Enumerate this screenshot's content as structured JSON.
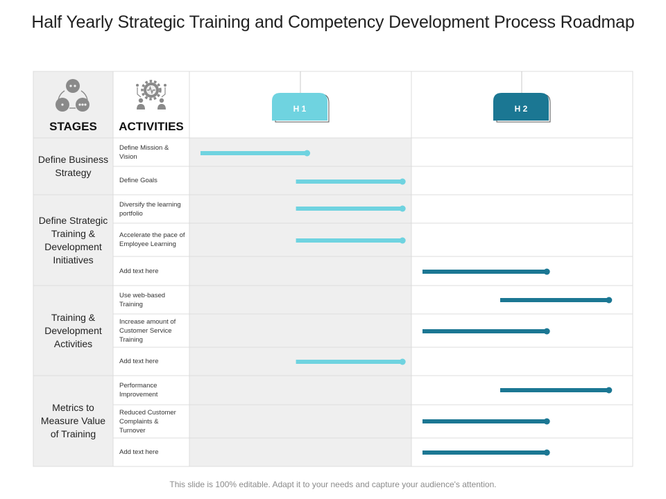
{
  "title": "Half Yearly Strategic Training and Competency Development Process Roadmap",
  "footer": "This slide is 100% editable. Adapt it to your needs and capture your audience's attention.",
  "headers": {
    "stages": "STAGES",
    "activities": "ACTIVITIES"
  },
  "halves": [
    {
      "label": "H 1",
      "color": "#6fd3e0"
    },
    {
      "label": "H 2",
      "color": "#1b7793"
    }
  ],
  "icons": {
    "stages": "team-cycle-icon",
    "activities": "gear-people-icon"
  },
  "colors": {
    "light_bar": "#6fd3e0",
    "dark_bar": "#1b7793",
    "shade": "#efefef",
    "grid": "#dcdcdc"
  },
  "stages": [
    "Define Business Strategy",
    "Define Strategic Training & Development Initiatives",
    "Training & Development Activities",
    "Metrics to Measure Value of Training"
  ],
  "activities": [
    "Define Mission & Vision",
    "Define Goals",
    "Diversify the learning portfolio",
    "Accelerate the pace of Employee Learning",
    "Add text here",
    "Use web-based Training",
    "Increase amount of Customer Service Training",
    "Add text here",
    "Performance Improvement",
    "Reduced Customer Complaints & Turnover",
    "Add text here"
  ],
  "chart_data": {
    "type": "gantt",
    "timeline": [
      "H 1",
      "H 2"
    ],
    "axis_units": "half-years (0 = start of H 1, 2 = end of H 2)",
    "tasks": [
      {
        "activity": "Define Mission & Vision",
        "start": 0.05,
        "end": 0.53,
        "half": "H 1"
      },
      {
        "activity": "Define Goals",
        "start": 0.48,
        "end": 0.96,
        "half": "H 1"
      },
      {
        "activity": "Diversify the learning portfolio",
        "start": 0.48,
        "end": 0.96,
        "half": "H 1"
      },
      {
        "activity": "Accelerate the pace of Employee Learning",
        "start": 0.48,
        "end": 0.96,
        "half": "H 1"
      },
      {
        "activity": "Add text here",
        "start": 1.05,
        "end": 1.61,
        "half": "H 2"
      },
      {
        "activity": "Use web-based Training",
        "start": 1.4,
        "end": 1.89,
        "half": "H 2"
      },
      {
        "activity": "Increase amount of Customer Service Training",
        "start": 1.05,
        "end": 1.61,
        "half": "H 2"
      },
      {
        "activity": "Add text here",
        "start": 0.48,
        "end": 0.96,
        "half": "H 1"
      },
      {
        "activity": "Performance Improvement",
        "start": 1.4,
        "end": 1.89,
        "half": "H 2"
      },
      {
        "activity": "Reduced Customer Complaints & Turnover",
        "start": 1.05,
        "end": 1.61,
        "half": "H 2"
      },
      {
        "activity": "Add text here",
        "start": 1.05,
        "end": 1.61,
        "half": "H 2"
      }
    ]
  }
}
